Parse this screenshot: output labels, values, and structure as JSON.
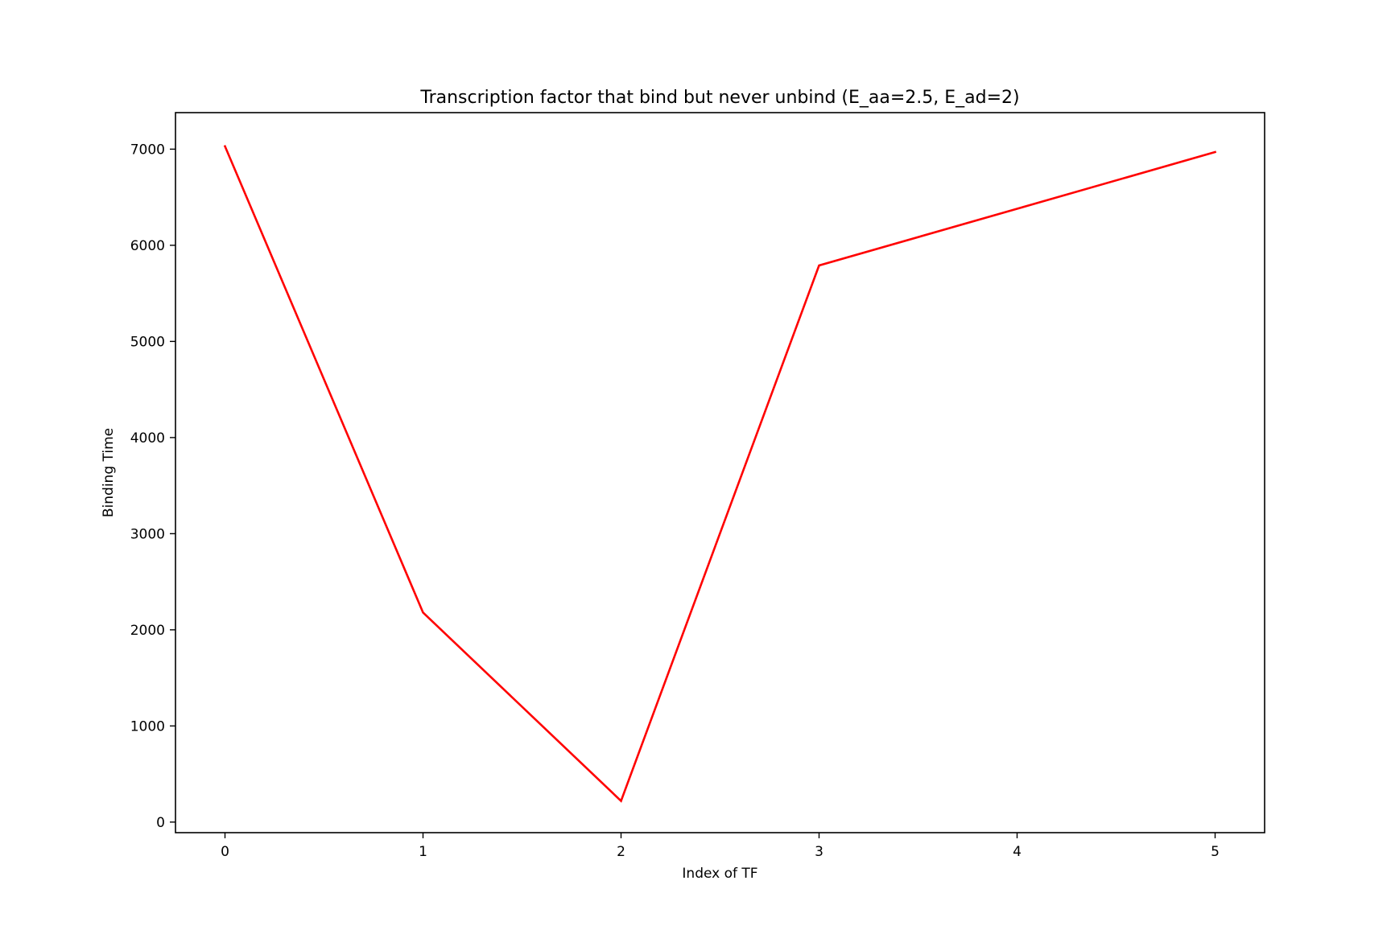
{
  "chart_data": {
    "type": "line",
    "title": "Transcription factor that bind but never unbind (E_aa=2.5, E_ad=2)",
    "xlabel": "Index of TF",
    "ylabel": "Binding Time",
    "x": [
      0,
      1,
      2,
      3,
      4,
      5
    ],
    "series": [
      {
        "values": [
          7030,
          2180,
          220,
          5790,
          6380,
          6970
        ],
        "color": "#ff0000"
      }
    ],
    "xticks": [
      "0",
      "1",
      "2",
      "3",
      "4",
      "5"
    ],
    "yticks": [
      "0",
      "1000",
      "2000",
      "3000",
      "4000",
      "5000",
      "6000",
      "7000"
    ],
    "xlim": [
      -0.25,
      5.25
    ],
    "ylim": [
      -110,
      7380
    ],
    "grid": false,
    "legend": "none"
  }
}
